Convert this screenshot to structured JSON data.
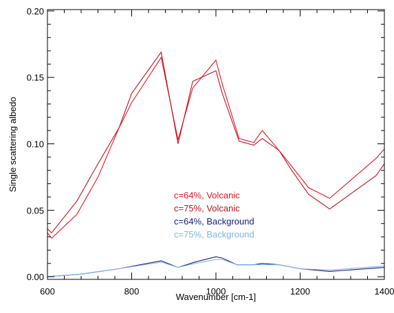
{
  "chart_data": {
    "type": "line",
    "title": "",
    "xlabel": "Wavenumber [cm-1]",
    "ylabel": "Single scattering albedo",
    "xlim": [
      600,
      1400
    ],
    "ylim": [
      -0.002,
      0.201
    ],
    "x_ticks": [
      600,
      800,
      1000,
      1200,
      1400
    ],
    "y_ticks": [
      0.0,
      0.05,
      0.1,
      0.15,
      0.2
    ],
    "x_tick_labels": [
      "600",
      "800",
      "1000",
      "1200",
      "1400"
    ],
    "y_tick_labels": [
      "0.00",
      "0.05",
      "0.10",
      "0.15",
      "0.20"
    ],
    "grid": false,
    "legend_position": "center-left",
    "series": [
      {
        "name": "c=64%, Volcanic",
        "color": "#e8141e",
        "x": [
          600,
          610,
          670,
          720,
          770,
          800,
          870,
          910,
          945,
          1000,
          1015,
          1055,
          1090,
          1110,
          1150,
          1180,
          1220,
          1270,
          1380,
          1400
        ],
        "y": [
          0.033,
          0.029,
          0.047,
          0.075,
          0.112,
          0.131,
          0.165,
          0.103,
          0.142,
          0.163,
          0.145,
          0.104,
          0.101,
          0.11,
          0.095,
          0.083,
          0.067,
          0.059,
          0.089,
          0.096
        ]
      },
      {
        "name": "c=75%, Volcanic",
        "color": "#c0101a",
        "x": [
          600,
          610,
          670,
          720,
          770,
          800,
          870,
          910,
          945,
          1000,
          1015,
          1055,
          1090,
          1110,
          1150,
          1180,
          1220,
          1270,
          1380,
          1400
        ],
        "y": [
          0.036,
          0.033,
          0.057,
          0.085,
          0.112,
          0.138,
          0.169,
          0.1,
          0.147,
          0.155,
          0.138,
          0.102,
          0.099,
          0.104,
          0.095,
          0.08,
          0.062,
          0.051,
          0.076,
          0.085
        ]
      },
      {
        "name": "c=64%, Background",
        "color": "#101c80",
        "x": [
          600,
          680,
          770,
          870,
          910,
          950,
          1000,
          1015,
          1050,
          1090,
          1110,
          1150,
          1200,
          1270,
          1400
        ],
        "y": [
          0.0,
          0.002,
          0.006,
          0.012,
          0.007,
          0.011,
          0.015,
          0.014,
          0.009,
          0.009,
          0.01,
          0.009,
          0.006,
          0.004,
          0.007
        ]
      },
      {
        "name": "c=75%, Background",
        "color": "#7fb4e6",
        "x": [
          600,
          680,
          770,
          870,
          910,
          950,
          1000,
          1015,
          1050,
          1090,
          1110,
          1150,
          1200,
          1270,
          1400
        ],
        "y": [
          0.0,
          0.002,
          0.006,
          0.011,
          0.007,
          0.01,
          0.013,
          0.013,
          0.009,
          0.009,
          0.009,
          0.009,
          0.006,
          0.005,
          0.008
        ]
      }
    ]
  }
}
